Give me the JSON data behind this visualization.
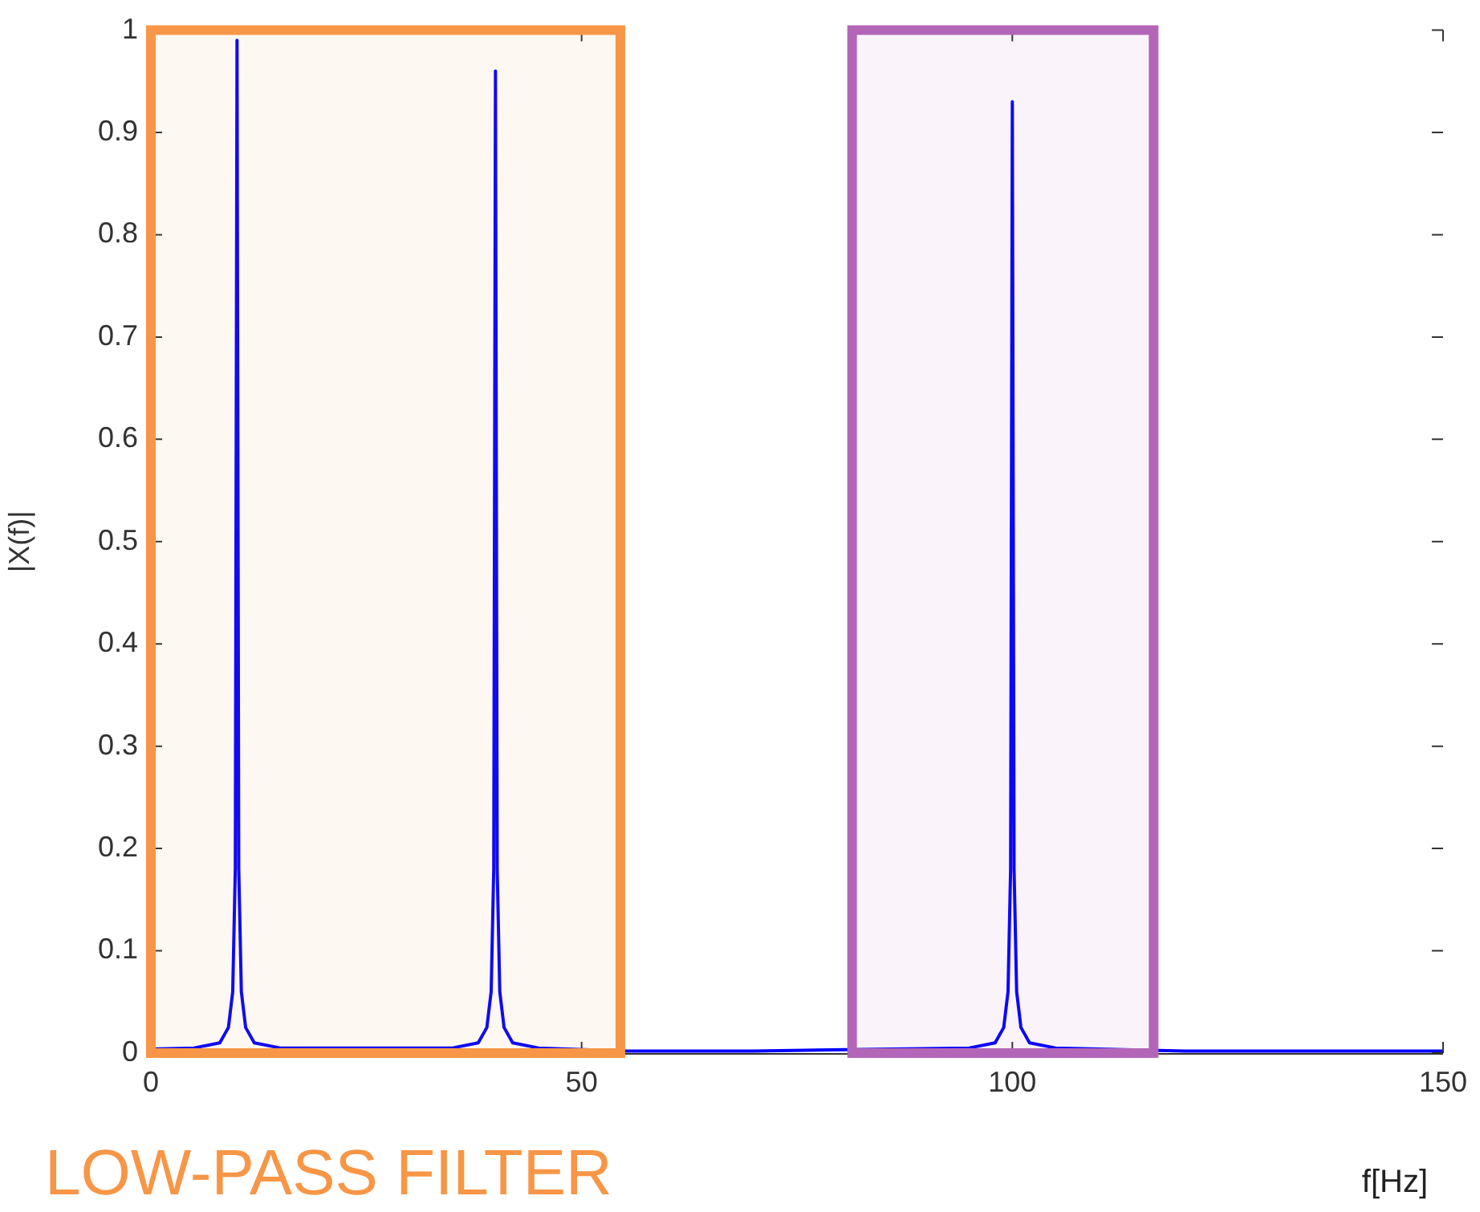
{
  "chart_data": {
    "type": "line",
    "xlabel": "f[Hz]",
    "ylabel": "|X(f)|",
    "x": [
      0,
      5,
      8,
      9,
      9.5,
      9.8,
      10,
      10.2,
      10.5,
      11,
      12,
      15,
      35,
      38,
      39,
      39.5,
      39.8,
      40,
      40.2,
      40.5,
      41,
      42,
      45,
      55,
      70,
      95,
      98,
      99,
      99.5,
      99.8,
      100,
      100.2,
      100.5,
      101,
      102,
      105,
      120,
      150
    ],
    "series": [
      {
        "color": "#0000ff",
        "values": [
          0.004,
          0.005,
          0.01,
          0.025,
          0.06,
          0.18,
          0.99,
          0.18,
          0.06,
          0.025,
          0.01,
          0.005,
          0.005,
          0.01,
          0.025,
          0.06,
          0.18,
          0.96,
          0.18,
          0.06,
          0.025,
          0.01,
          0.005,
          0.002,
          0.002,
          0.005,
          0.01,
          0.025,
          0.06,
          0.18,
          0.93,
          0.18,
          0.06,
          0.025,
          0.01,
          0.005,
          0.002,
          0.002
        ]
      }
    ],
    "xlim": [
      0,
      150
    ],
    "xticks": [
      0,
      50,
      100,
      150
    ],
    "ylim": [
      0,
      1
    ],
    "yticks": [
      0,
      0.1,
      0.2,
      0.3,
      0.4,
      0.5,
      0.6,
      0.7,
      0.8,
      0.9,
      1
    ],
    "bands": [
      {
        "axis": "x",
        "from": 0,
        "to": 54.5,
        "label": "LOW-PASS FILTER",
        "color": "#f79646"
      },
      {
        "axis": "x",
        "from": 81.4,
        "to": 116.4,
        "color": "#b366b8"
      }
    ],
    "grid": false,
    "legend": false,
    "marker": "none",
    "line_style": "solid"
  }
}
